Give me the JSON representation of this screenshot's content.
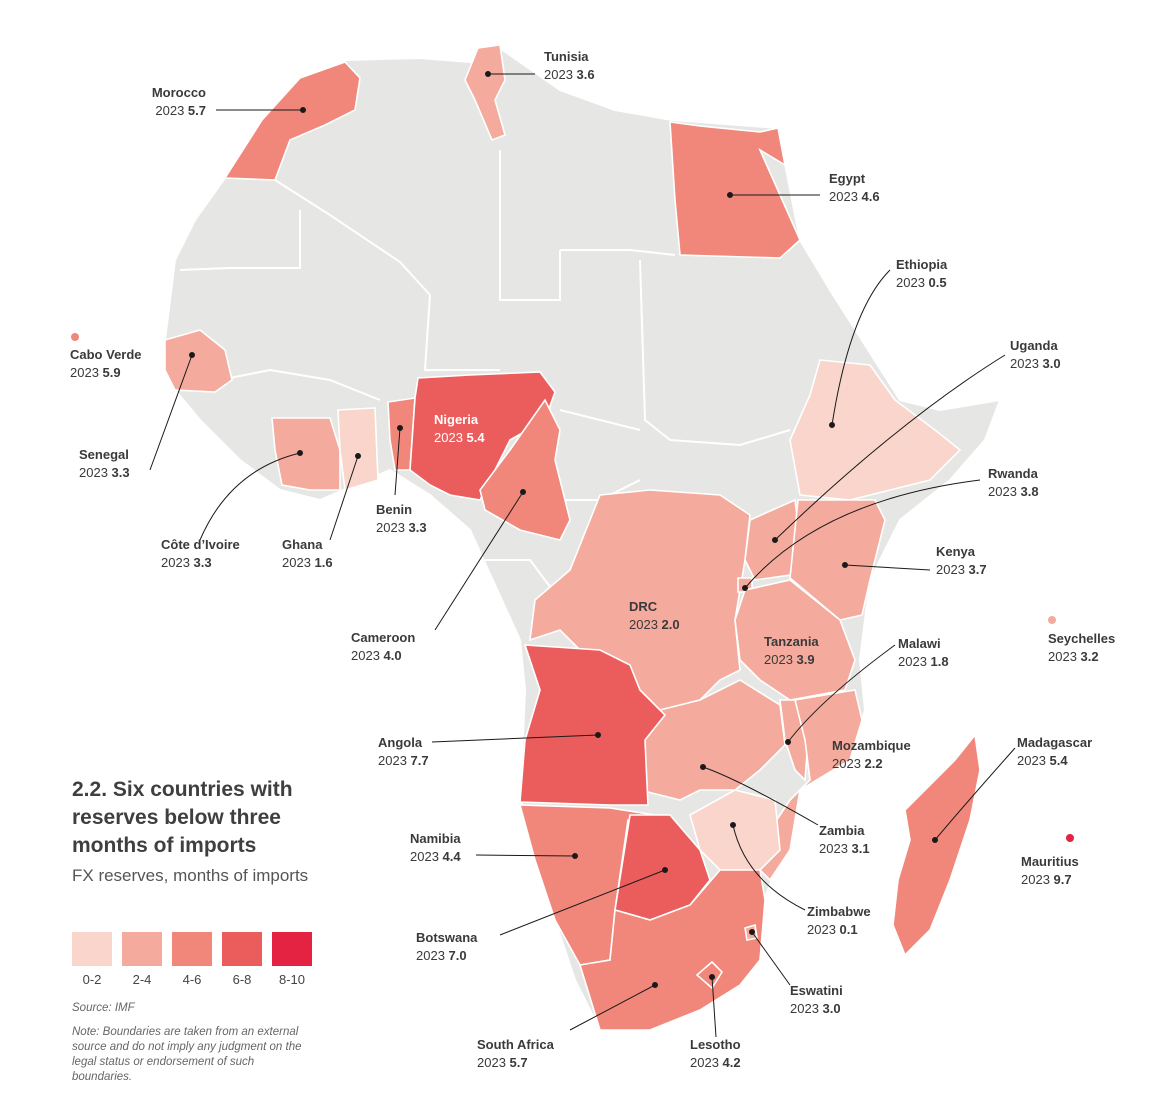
{
  "title": "2.2. Six countries with reserves below three months of imports",
  "subtitle": "FX reserves, months of imports",
  "legend": {
    "items": [
      {
        "label": "0-2",
        "color": "#f9d5cb"
      },
      {
        "label": "2-4",
        "color": "#f4aa9c"
      },
      {
        "label": "4-6",
        "color": "#f0877a"
      },
      {
        "label": "6-8",
        "color": "#ea5d5c"
      },
      {
        "label": "8-10",
        "color": "#e42242"
      }
    ]
  },
  "source": "Source: IMF",
  "note": "Note: Boundaries are taken from an external source and do not imply any judgment on the legal status or endorsement of such boundaries.",
  "base_color": "#e6e6e4",
  "countries": [
    {
      "key": "tunisia",
      "name": "Tunisia",
      "year": "2023",
      "value": "3.6"
    },
    {
      "key": "morocco",
      "name": "Morocco",
      "year": "2023",
      "value": "5.7"
    },
    {
      "key": "egypt",
      "name": "Egypt",
      "year": "2023",
      "value": "4.6"
    },
    {
      "key": "ethiopia",
      "name": "Ethiopia",
      "year": "2023",
      "value": "0.5"
    },
    {
      "key": "uganda",
      "name": "Uganda",
      "year": "2023",
      "value": "3.0"
    },
    {
      "key": "cabo_verde",
      "name": "Cabo Verde",
      "year": "2023",
      "value": "5.9"
    },
    {
      "key": "rwanda",
      "name": "Rwanda",
      "year": "2023",
      "value": "3.8"
    },
    {
      "key": "senegal",
      "name": "Senegal",
      "year": "2023",
      "value": "3.3"
    },
    {
      "key": "nigeria",
      "name": "Nigeria",
      "year": "2023",
      "value": "5.4"
    },
    {
      "key": "kenya",
      "name": "Kenya",
      "year": "2023",
      "value": "3.7"
    },
    {
      "key": "benin",
      "name": "Benin",
      "year": "2023",
      "value": "3.3"
    },
    {
      "key": "cote_divoire",
      "name": "Côte d’Ivoire",
      "year": "2023",
      "value": "3.3"
    },
    {
      "key": "ghana",
      "name": "Ghana",
      "year": "2023",
      "value": "1.6"
    },
    {
      "key": "drc",
      "name": "DRC",
      "year": "2023",
      "value": "2.0"
    },
    {
      "key": "seychelles",
      "name": "Seychelles",
      "year": "2023",
      "value": "3.2"
    },
    {
      "key": "cameroon",
      "name": "Cameroon",
      "year": "2023",
      "value": "4.0"
    },
    {
      "key": "tanzania",
      "name": "Tanzania",
      "year": "2023",
      "value": "3.9"
    },
    {
      "key": "malawi",
      "name": "Malawi",
      "year": "2023",
      "value": "1.8"
    },
    {
      "key": "angola",
      "name": "Angola",
      "year": "2023",
      "value": "7.7"
    },
    {
      "key": "mozambique",
      "name": "Mozambique",
      "year": "2023",
      "value": "2.2"
    },
    {
      "key": "madagascar",
      "name": "Madagascar",
      "year": "2023",
      "value": "5.4"
    },
    {
      "key": "zambia",
      "name": "Zambia",
      "year": "2023",
      "value": "3.1"
    },
    {
      "key": "namibia",
      "name": "Namibia",
      "year": "2023",
      "value": "4.4"
    },
    {
      "key": "mauritius",
      "name": "Mauritius",
      "year": "2023",
      "value": "9.7"
    },
    {
      "key": "botswana",
      "name": "Botswana",
      "year": "2023",
      "value": "7.0"
    },
    {
      "key": "zimbabwe",
      "name": "Zimbabwe",
      "year": "2023",
      "value": "0.1"
    },
    {
      "key": "eswatini",
      "name": "Eswatini",
      "year": "2023",
      "value": "3.0"
    },
    {
      "key": "south_africa",
      "name": "South Africa",
      "year": "2023",
      "value": "5.7"
    },
    {
      "key": "lesotho",
      "name": "Lesotho",
      "year": "2023",
      "value": "4.2"
    }
  ]
}
